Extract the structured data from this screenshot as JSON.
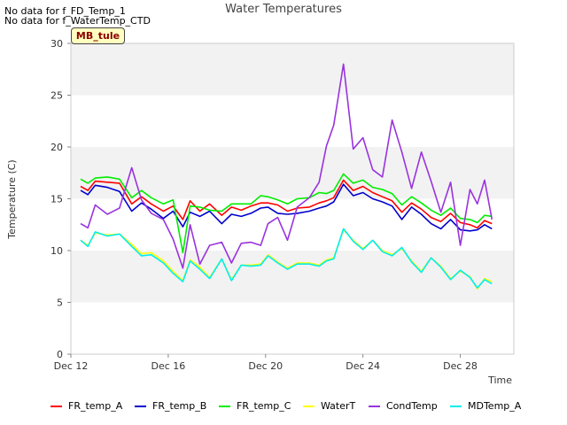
{
  "no_data_lines": [
    "No data for f_FD_Temp_1",
    "No data for f_WaterTemp_CTD"
  ],
  "site_tag": "MB_tule",
  "chart_data": {
    "type": "line",
    "title": "Water Temperatures",
    "xlabel": "Time",
    "ylabel": "Temperature (C)",
    "ylim": [
      0,
      30
    ],
    "yticks": [
      0,
      5,
      10,
      15,
      20,
      25,
      30
    ],
    "xlim": [
      12,
      30.2
    ],
    "xticks": [
      12,
      16,
      20,
      24,
      28
    ],
    "xtick_labels": [
      "Dec 12",
      "Dec 16",
      "Dec 20",
      "Dec 24",
      "Dec 28"
    ],
    "grid": "horizontal bands",
    "legend_position": "bottom",
    "x": [
      12.4,
      12.7,
      13.0,
      13.5,
      14.0,
      14.5,
      14.9,
      15.3,
      15.8,
      16.2,
      16.6,
      16.9,
      17.3,
      17.7,
      18.2,
      18.6,
      19.0,
      19.4,
      19.8,
      20.1,
      20.5,
      20.9,
      21.3,
      21.8,
      22.2,
      22.5,
      22.8,
      23.2,
      23.6,
      24.0,
      24.4,
      24.8,
      25.2,
      25.6,
      26.0,
      26.4,
      26.8,
      27.2,
      27.6,
      28.0,
      28.4,
      28.7,
      29.0,
      29.3
    ],
    "series": [
      {
        "name": "FR_temp_A",
        "color": "#ff0000",
        "values": [
          16.2,
          15.8,
          16.7,
          16.6,
          16.5,
          14.5,
          15.2,
          14.5,
          13.8,
          14.3,
          13.0,
          14.8,
          13.8,
          14.5,
          13.4,
          14.2,
          13.9,
          14.3,
          14.6,
          14.6,
          14.4,
          13.8,
          14.1,
          14.2,
          14.6,
          14.8,
          15.1,
          16.8,
          15.8,
          16.2,
          15.6,
          15.2,
          14.8,
          13.7,
          14.6,
          14.0,
          13.2,
          12.8,
          13.6,
          12.7,
          12.5,
          12.2,
          12.9,
          12.6
        ]
      },
      {
        "name": "FR_temp_B",
        "color": "#0000cc",
        "values": [
          15.8,
          15.4,
          16.3,
          16.1,
          15.7,
          13.8,
          14.6,
          14.0,
          13.1,
          13.8,
          12.3,
          13.7,
          13.3,
          13.8,
          12.6,
          13.5,
          13.3,
          13.6,
          14.1,
          14.2,
          13.6,
          13.5,
          13.6,
          13.8,
          14.1,
          14.3,
          14.7,
          16.4,
          15.3,
          15.6,
          15.0,
          14.7,
          14.3,
          13.0,
          14.2,
          13.5,
          12.6,
          12.1,
          13.0,
          12.0,
          11.9,
          12.0,
          12.5,
          12.1
        ]
      },
      {
        "name": "FR_temp_C",
        "color": "#00ee00",
        "values": [
          16.9,
          16.5,
          17.0,
          17.1,
          16.9,
          15.1,
          15.8,
          15.1,
          14.5,
          14.9,
          9.8,
          14.3,
          14.2,
          13.9,
          13.8,
          14.5,
          14.5,
          14.5,
          15.3,
          15.2,
          14.9,
          14.5,
          15.0,
          15.1,
          15.6,
          15.5,
          15.8,
          17.4,
          16.5,
          16.8,
          16.1,
          15.9,
          15.5,
          14.4,
          15.2,
          14.6,
          13.9,
          13.4,
          14.1,
          13.1,
          13.0,
          12.7,
          13.4,
          13.3
        ]
      },
      {
        "name": "WaterT",
        "color": "#ffff00",
        "values": [
          11.0,
          10.5,
          11.7,
          11.5,
          11.6,
          10.6,
          9.7,
          9.8,
          9.0,
          8.0,
          7.1,
          9.1,
          8.4,
          7.4,
          9.2,
          7.2,
          8.6,
          8.6,
          8.7,
          9.6,
          8.9,
          8.3,
          8.8,
          8.8,
          8.6,
          9.1,
          9.3,
          12.0,
          11.0,
          10.2,
          11.0,
          10.0,
          9.6,
          10.2,
          9.0,
          8.0,
          9.3,
          8.5,
          7.3,
          8.0,
          7.5,
          6.3,
          7.3,
          7.0
        ]
      },
      {
        "name": "CondTemp",
        "color": "#9933dd",
        "values": [
          12.6,
          12.2,
          14.4,
          13.5,
          14.1,
          18.0,
          14.9,
          13.6,
          13.0,
          11.1,
          8.3,
          12.5,
          8.7,
          10.5,
          10.8,
          8.8,
          10.7,
          10.8,
          10.5,
          12.6,
          13.2,
          11.0,
          14.2,
          15.1,
          16.6,
          20.1,
          22.1,
          28.0,
          19.8,
          20.9,
          17.8,
          17.1,
          22.6,
          19.5,
          16.0,
          19.5,
          16.7,
          13.7,
          16.6,
          10.5,
          15.9,
          14.5,
          16.8,
          13.0
        ]
      },
      {
        "name": "MDTemp_A",
        "color": "#00eeee",
        "values": [
          11.0,
          10.4,
          11.8,
          11.4,
          11.6,
          10.4,
          9.5,
          9.6,
          8.8,
          7.8,
          7.0,
          9.0,
          8.2,
          7.3,
          9.2,
          7.1,
          8.6,
          8.5,
          8.6,
          9.5,
          8.8,
          8.2,
          8.7,
          8.7,
          8.5,
          9.0,
          9.2,
          12.1,
          10.9,
          10.1,
          11.0,
          9.9,
          9.5,
          10.3,
          8.9,
          7.9,
          9.3,
          8.4,
          7.2,
          8.1,
          7.4,
          6.4,
          7.2,
          6.8
        ]
      }
    ]
  }
}
